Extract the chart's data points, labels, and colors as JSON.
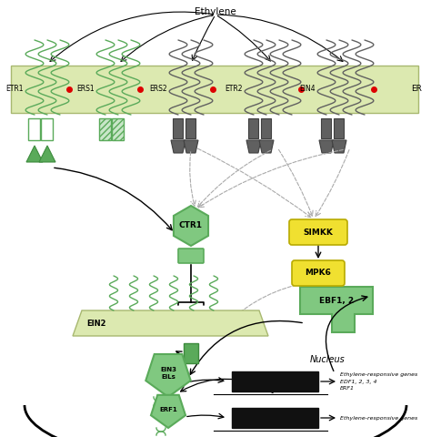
{
  "bg_color": "#ffffff",
  "er_mem_color": "#dce9b0",
  "er_mem_edge": "#a8b870",
  "green_col": "#5aaa5a",
  "green_fill": "#80c880",
  "green_dark": "#3d8b3d",
  "gray_col": "#606060",
  "gray_dark": "#404040",
  "red_dot": "#dd0000",
  "yellow_fill": "#f0e030",
  "yellow_edge": "#b8aa00",
  "black": "#111111",
  "title": "Ethylene",
  "er_label": "ER",
  "nucleus_label": "Nucleus",
  "ctr1_label": "CTR1",
  "simkk_label": "SIMKK",
  "mpk6_label": "MPK6",
  "ein2_label": "EIN2",
  "ebf_label": "EBF1, 2",
  "ein3_label": "EIN3\nEILs",
  "erf1_label": "ERF1",
  "gene1a": "Ethylene-responsive genes",
  "gene1b": "EDF1, 2, 3, 4",
  "gene1c": "ERF1",
  "gene2": "Ethylene-responsive genes"
}
